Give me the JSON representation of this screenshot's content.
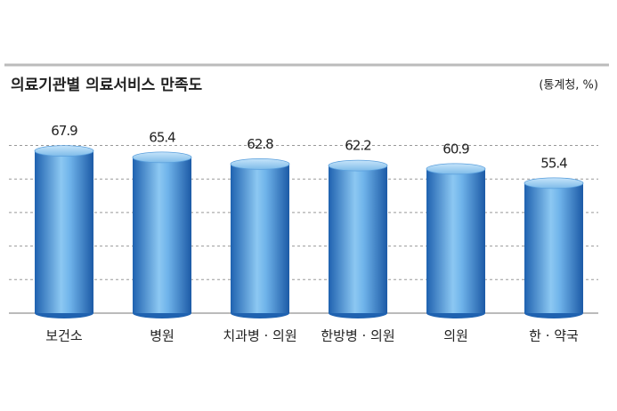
{
  "chart_data": {
    "type": "bar",
    "title": "의료기관별 의료서비스 만족도",
    "source": "(통계청, %)",
    "categories": [
      "보건소",
      "병원",
      "치과병 · 의원",
      "한방병 · 의원",
      "의원",
      "한 · 약국"
    ],
    "values": [
      67.9,
      65.4,
      62.8,
      62.2,
      60.9,
      55.4
    ],
    "color": "#3f8fd6",
    "ylim": [
      5,
      71
    ],
    "yticks": [
      5,
      18,
      31,
      44,
      57,
      70
    ],
    "grid": true
  }
}
